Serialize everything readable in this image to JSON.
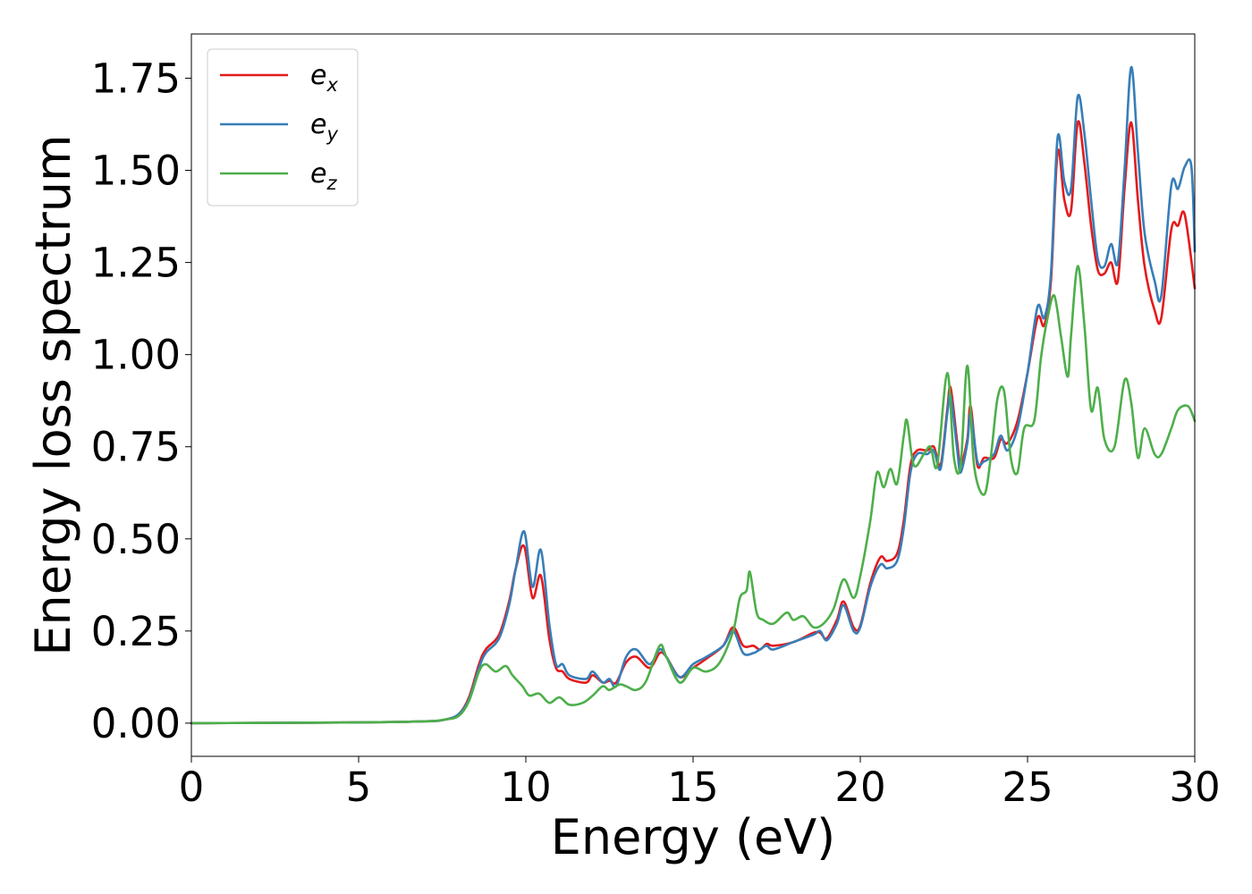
{
  "chart_data": {
    "type": "line",
    "xlabel": "Energy (eV)",
    "ylabel": "Energy loss spectrum",
    "xlim": [
      0,
      30
    ],
    "ylim": [
      -0.09,
      1.87
    ],
    "xticks": [
      "0",
      "5",
      "10",
      "15",
      "20",
      "25",
      "30"
    ],
    "xtick_values": [
      0,
      5,
      10,
      15,
      20,
      25,
      30
    ],
    "yticks": [
      "0.00",
      "0.25",
      "0.50",
      "0.75",
      "1.00",
      "1.25",
      "1.50",
      "1.75"
    ],
    "ytick_values": [
      0,
      0.25,
      0.5,
      0.75,
      1.0,
      1.25,
      1.5,
      1.75
    ],
    "grid": false,
    "legend_position": "top-left",
    "series": [
      {
        "name": "e_x",
        "legend_base": "e",
        "legend_sub": "x",
        "color": "#e41a1c",
        "points": [
          [
            0,
            0
          ],
          [
            5,
            0.002
          ],
          [
            7,
            0.005
          ],
          [
            7.6,
            0.01
          ],
          [
            8.0,
            0.025
          ],
          [
            8.3,
            0.07
          ],
          [
            8.6,
            0.16
          ],
          [
            8.8,
            0.2
          ],
          [
            9.2,
            0.24
          ],
          [
            9.5,
            0.33
          ],
          [
            9.7,
            0.42
          ],
          [
            9.95,
            0.48
          ],
          [
            10.2,
            0.34
          ],
          [
            10.45,
            0.4
          ],
          [
            10.7,
            0.23
          ],
          [
            10.9,
            0.15
          ],
          [
            11.1,
            0.14
          ],
          [
            11.3,
            0.12
          ],
          [
            11.8,
            0.11
          ],
          [
            12.0,
            0.13
          ],
          [
            12.3,
            0.11
          ],
          [
            12.5,
            0.115
          ],
          [
            12.7,
            0.11
          ],
          [
            13.0,
            0.165
          ],
          [
            13.3,
            0.18
          ],
          [
            13.7,
            0.15
          ],
          [
            14.0,
            0.19
          ],
          [
            14.2,
            0.18
          ],
          [
            14.6,
            0.125
          ],
          [
            15.0,
            0.15
          ],
          [
            15.4,
            0.175
          ],
          [
            15.9,
            0.21
          ],
          [
            16.2,
            0.26
          ],
          [
            16.5,
            0.21
          ],
          [
            16.8,
            0.21
          ],
          [
            17.0,
            0.2
          ],
          [
            17.2,
            0.215
          ],
          [
            17.4,
            0.21
          ],
          [
            18.0,
            0.22
          ],
          [
            18.6,
            0.245
          ],
          [
            18.8,
            0.245
          ],
          [
            19.0,
            0.23
          ],
          [
            19.3,
            0.28
          ],
          [
            19.5,
            0.33
          ],
          [
            19.8,
            0.26
          ],
          [
            20.0,
            0.265
          ],
          [
            20.3,
            0.38
          ],
          [
            20.6,
            0.45
          ],
          [
            20.8,
            0.44
          ],
          [
            21.1,
            0.46
          ],
          [
            21.3,
            0.55
          ],
          [
            21.5,
            0.7
          ],
          [
            21.7,
            0.74
          ],
          [
            22.0,
            0.74
          ],
          [
            22.2,
            0.75
          ],
          [
            22.4,
            0.7
          ],
          [
            22.6,
            0.85
          ],
          [
            22.7,
            0.91
          ],
          [
            22.9,
            0.76
          ],
          [
            23.0,
            0.7
          ],
          [
            23.2,
            0.77
          ],
          [
            23.3,
            0.86
          ],
          [
            23.5,
            0.7
          ],
          [
            23.7,
            0.72
          ],
          [
            24.0,
            0.72
          ],
          [
            24.2,
            0.77
          ],
          [
            24.4,
            0.76
          ],
          [
            24.7,
            0.82
          ],
          [
            25.0,
            0.95
          ],
          [
            25.3,
            1.1
          ],
          [
            25.5,
            1.08
          ],
          [
            25.7,
            1.2
          ],
          [
            25.9,
            1.55
          ],
          [
            26.1,
            1.42
          ],
          [
            26.3,
            1.39
          ],
          [
            26.5,
            1.63
          ],
          [
            26.7,
            1.52
          ],
          [
            26.9,
            1.35
          ],
          [
            27.1,
            1.23
          ],
          [
            27.3,
            1.22
          ],
          [
            27.5,
            1.25
          ],
          [
            27.7,
            1.2
          ],
          [
            27.9,
            1.45
          ],
          [
            28.1,
            1.63
          ],
          [
            28.3,
            1.42
          ],
          [
            28.5,
            1.24
          ],
          [
            28.8,
            1.12
          ],
          [
            29.0,
            1.1
          ],
          [
            29.3,
            1.34
          ],
          [
            29.5,
            1.35
          ],
          [
            29.7,
            1.38
          ],
          [
            30.0,
            1.18
          ]
        ]
      },
      {
        "name": "e_y",
        "legend_base": "e",
        "legend_sub": "y",
        "color": "#377eb8",
        "points": [
          [
            0,
            0
          ],
          [
            5,
            0.002
          ],
          [
            7,
            0.005
          ],
          [
            7.6,
            0.01
          ],
          [
            8.0,
            0.025
          ],
          [
            8.3,
            0.065
          ],
          [
            8.6,
            0.15
          ],
          [
            8.8,
            0.19
          ],
          [
            9.2,
            0.23
          ],
          [
            9.5,
            0.32
          ],
          [
            9.7,
            0.42
          ],
          [
            9.95,
            0.52
          ],
          [
            10.2,
            0.37
          ],
          [
            10.45,
            0.47
          ],
          [
            10.7,
            0.27
          ],
          [
            10.9,
            0.16
          ],
          [
            11.1,
            0.16
          ],
          [
            11.3,
            0.13
          ],
          [
            11.8,
            0.12
          ],
          [
            12.0,
            0.14
          ],
          [
            12.3,
            0.11
          ],
          [
            12.5,
            0.12
          ],
          [
            12.7,
            0.1
          ],
          [
            13.0,
            0.18
          ],
          [
            13.3,
            0.2
          ],
          [
            13.7,
            0.16
          ],
          [
            14.0,
            0.2
          ],
          [
            14.2,
            0.18
          ],
          [
            14.6,
            0.125
          ],
          [
            15.0,
            0.16
          ],
          [
            15.4,
            0.18
          ],
          [
            15.9,
            0.21
          ],
          [
            16.2,
            0.25
          ],
          [
            16.5,
            0.19
          ],
          [
            16.8,
            0.19
          ],
          [
            17.0,
            0.2
          ],
          [
            17.2,
            0.21
          ],
          [
            17.4,
            0.2
          ],
          [
            18.0,
            0.22
          ],
          [
            18.6,
            0.24
          ],
          [
            18.8,
            0.25
          ],
          [
            19.0,
            0.225
          ],
          [
            19.3,
            0.27
          ],
          [
            19.5,
            0.32
          ],
          [
            19.8,
            0.25
          ],
          [
            20.0,
            0.26
          ],
          [
            20.3,
            0.37
          ],
          [
            20.6,
            0.43
          ],
          [
            20.8,
            0.42
          ],
          [
            21.1,
            0.44
          ],
          [
            21.3,
            0.53
          ],
          [
            21.5,
            0.68
          ],
          [
            21.7,
            0.73
          ],
          [
            22.0,
            0.73
          ],
          [
            22.2,
            0.74
          ],
          [
            22.4,
            0.69
          ],
          [
            22.6,
            0.84
          ],
          [
            22.7,
            0.89
          ],
          [
            22.9,
            0.74
          ],
          [
            23.0,
            0.68
          ],
          [
            23.2,
            0.76
          ],
          [
            23.3,
            0.84
          ],
          [
            23.5,
            0.71
          ],
          [
            23.7,
            0.71
          ],
          [
            24.0,
            0.73
          ],
          [
            24.2,
            0.78
          ],
          [
            24.4,
            0.74
          ],
          [
            24.7,
            0.8
          ],
          [
            25.0,
            0.95
          ],
          [
            25.3,
            1.13
          ],
          [
            25.5,
            1.1
          ],
          [
            25.7,
            1.22
          ],
          [
            25.9,
            1.59
          ],
          [
            26.1,
            1.47
          ],
          [
            26.3,
            1.45
          ],
          [
            26.5,
            1.7
          ],
          [
            26.7,
            1.6
          ],
          [
            26.9,
            1.42
          ],
          [
            27.1,
            1.26
          ],
          [
            27.3,
            1.24
          ],
          [
            27.5,
            1.3
          ],
          [
            27.7,
            1.25
          ],
          [
            27.9,
            1.5
          ],
          [
            28.1,
            1.78
          ],
          [
            28.3,
            1.55
          ],
          [
            28.5,
            1.33
          ],
          [
            28.8,
            1.2
          ],
          [
            29.0,
            1.16
          ],
          [
            29.3,
            1.46
          ],
          [
            29.5,
            1.45
          ],
          [
            29.7,
            1.51
          ],
          [
            29.9,
            1.51
          ],
          [
            30.0,
            1.28
          ]
        ]
      },
      {
        "name": "e_z",
        "legend_base": "e",
        "legend_sub": "z",
        "color": "#4daf4a",
        "points": [
          [
            0,
            0
          ],
          [
            5,
            0.002
          ],
          [
            7,
            0.005
          ],
          [
            7.6,
            0.01
          ],
          [
            8.0,
            0.02
          ],
          [
            8.3,
            0.06
          ],
          [
            8.6,
            0.14
          ],
          [
            8.8,
            0.16
          ],
          [
            9.1,
            0.14
          ],
          [
            9.4,
            0.155
          ],
          [
            9.6,
            0.13
          ],
          [
            9.9,
            0.1
          ],
          [
            10.1,
            0.075
          ],
          [
            10.4,
            0.08
          ],
          [
            10.7,
            0.055
          ],
          [
            11.0,
            0.07
          ],
          [
            11.3,
            0.05
          ],
          [
            11.7,
            0.055
          ],
          [
            12.0,
            0.075
          ],
          [
            12.3,
            0.1
          ],
          [
            12.5,
            0.09
          ],
          [
            12.8,
            0.105
          ],
          [
            13.0,
            0.1
          ],
          [
            13.3,
            0.09
          ],
          [
            13.6,
            0.115
          ],
          [
            14.0,
            0.21
          ],
          [
            14.2,
            0.18
          ],
          [
            14.6,
            0.11
          ],
          [
            15.0,
            0.15
          ],
          [
            15.4,
            0.14
          ],
          [
            15.8,
            0.165
          ],
          [
            16.2,
            0.25
          ],
          [
            16.4,
            0.34
          ],
          [
            16.6,
            0.36
          ],
          [
            16.7,
            0.41
          ],
          [
            16.9,
            0.3
          ],
          [
            17.1,
            0.28
          ],
          [
            17.4,
            0.27
          ],
          [
            17.8,
            0.3
          ],
          [
            18.0,
            0.28
          ],
          [
            18.3,
            0.29
          ],
          [
            18.6,
            0.26
          ],
          [
            18.9,
            0.27
          ],
          [
            19.2,
            0.31
          ],
          [
            19.5,
            0.39
          ],
          [
            19.8,
            0.34
          ],
          [
            20.0,
            0.4
          ],
          [
            20.3,
            0.55
          ],
          [
            20.5,
            0.68
          ],
          [
            20.7,
            0.64
          ],
          [
            20.9,
            0.69
          ],
          [
            21.1,
            0.65
          ],
          [
            21.3,
            0.78
          ],
          [
            21.4,
            0.82
          ],
          [
            21.6,
            0.7
          ],
          [
            21.9,
            0.73
          ],
          [
            22.1,
            0.75
          ],
          [
            22.3,
            0.7
          ],
          [
            22.6,
            0.95
          ],
          [
            22.8,
            0.72
          ],
          [
            23.0,
            0.7
          ],
          [
            23.2,
            0.97
          ],
          [
            23.4,
            0.7
          ],
          [
            23.7,
            0.62
          ],
          [
            23.9,
            0.72
          ],
          [
            24.1,
            0.88
          ],
          [
            24.3,
            0.9
          ],
          [
            24.5,
            0.72
          ],
          [
            24.7,
            0.68
          ],
          [
            24.9,
            0.8
          ],
          [
            25.2,
            0.82
          ],
          [
            25.4,
            0.99
          ],
          [
            25.6,
            1.1
          ],
          [
            25.8,
            1.16
          ],
          [
            26.0,
            1.05
          ],
          [
            26.2,
            0.94
          ],
          [
            26.3,
            1.05
          ],
          [
            26.5,
            1.24
          ],
          [
            26.7,
            1.08
          ],
          [
            26.9,
            0.85
          ],
          [
            27.1,
            0.91
          ],
          [
            27.3,
            0.77
          ],
          [
            27.6,
            0.75
          ],
          [
            27.9,
            0.93
          ],
          [
            28.1,
            0.87
          ],
          [
            28.3,
            0.72
          ],
          [
            28.5,
            0.8
          ],
          [
            28.8,
            0.73
          ],
          [
            29.0,
            0.73
          ],
          [
            29.3,
            0.8
          ],
          [
            29.5,
            0.85
          ],
          [
            29.8,
            0.86
          ],
          [
            30.0,
            0.82
          ]
        ]
      }
    ]
  }
}
